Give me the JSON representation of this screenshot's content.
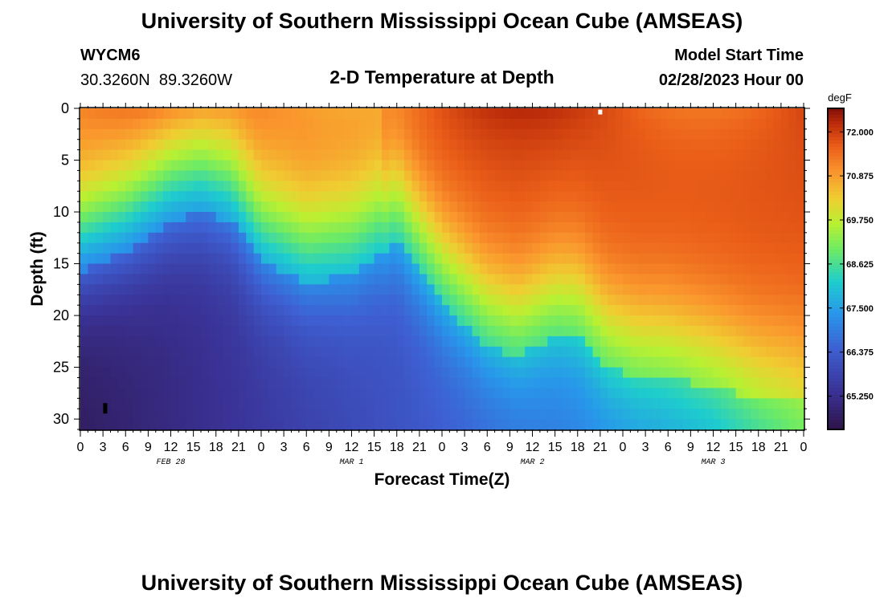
{
  "title": "University of Southern Mississippi Ocean Cube (AMSEAS)",
  "footer_title": "University of Southern Mississippi Ocean Cube (AMSEAS)",
  "station": {
    "id": "WYCM6",
    "coords": "30.3260N  89.3260W"
  },
  "model_start": {
    "label": "Model Start Time",
    "value": "02/28/2023 Hour 00"
  },
  "chart_data": {
    "type": "heatmap",
    "title": "2-D Temperature at Depth",
    "xlabel": "Forecast Time(Z)",
    "ylabel": "Depth (ft)",
    "x_range_hours": [
      0,
      96
    ],
    "ylim": [
      0,
      31
    ],
    "x_tick_labels": [
      "0",
      "3",
      "6",
      "9",
      "12",
      "15",
      "18",
      "21",
      "0",
      "3",
      "6",
      "9",
      "12",
      "15",
      "18",
      "21",
      "0",
      "3",
      "6",
      "9",
      "12",
      "15",
      "18",
      "21",
      "0",
      "3",
      "6",
      "9",
      "12",
      "15",
      "18",
      "21",
      "0"
    ],
    "y_ticks": [
      0,
      5,
      10,
      15,
      20,
      25,
      30
    ],
    "date_labels": [
      {
        "label": "FEB 28",
        "hour": 12
      },
      {
        "label": "MAR 1",
        "hour": 36
      },
      {
        "label": "MAR 2",
        "hour": 60
      },
      {
        "label": "MAR 3",
        "hour": 84
      }
    ],
    "colorbar": {
      "unit": "degF",
      "min": 64.4,
      "max": 72.6,
      "tick_labels": [
        "72.000",
        "70.875",
        "69.750",
        "68.625",
        "67.500",
        "66.375",
        "65.250"
      ],
      "tick_values": [
        72.0,
        70.875,
        69.75,
        68.625,
        67.5,
        66.375,
        65.25
      ]
    },
    "thermocline_depth_ft": {
      "hours": [
        0,
        6,
        12,
        16,
        20,
        24,
        30,
        36,
        42,
        48,
        54,
        58,
        63,
        66,
        70,
        74,
        78,
        84,
        90,
        96
      ],
      "values": [
        12,
        10,
        7,
        6,
        7,
        11,
        13,
        12,
        9,
        15,
        19,
        20,
        18,
        18,
        21,
        22,
        22,
        23,
        24,
        24
      ]
    },
    "surface_temp_degF": 71.4,
    "deep_temp_degF": 64.7,
    "markers": [
      {
        "name": "low-marker",
        "hour": 3.3,
        "depth": 29.0,
        "color": "#000000"
      },
      {
        "name": "high-marker",
        "hour": 69.0,
        "depth": 0.2,
        "color": "#ffffff"
      }
    ]
  }
}
